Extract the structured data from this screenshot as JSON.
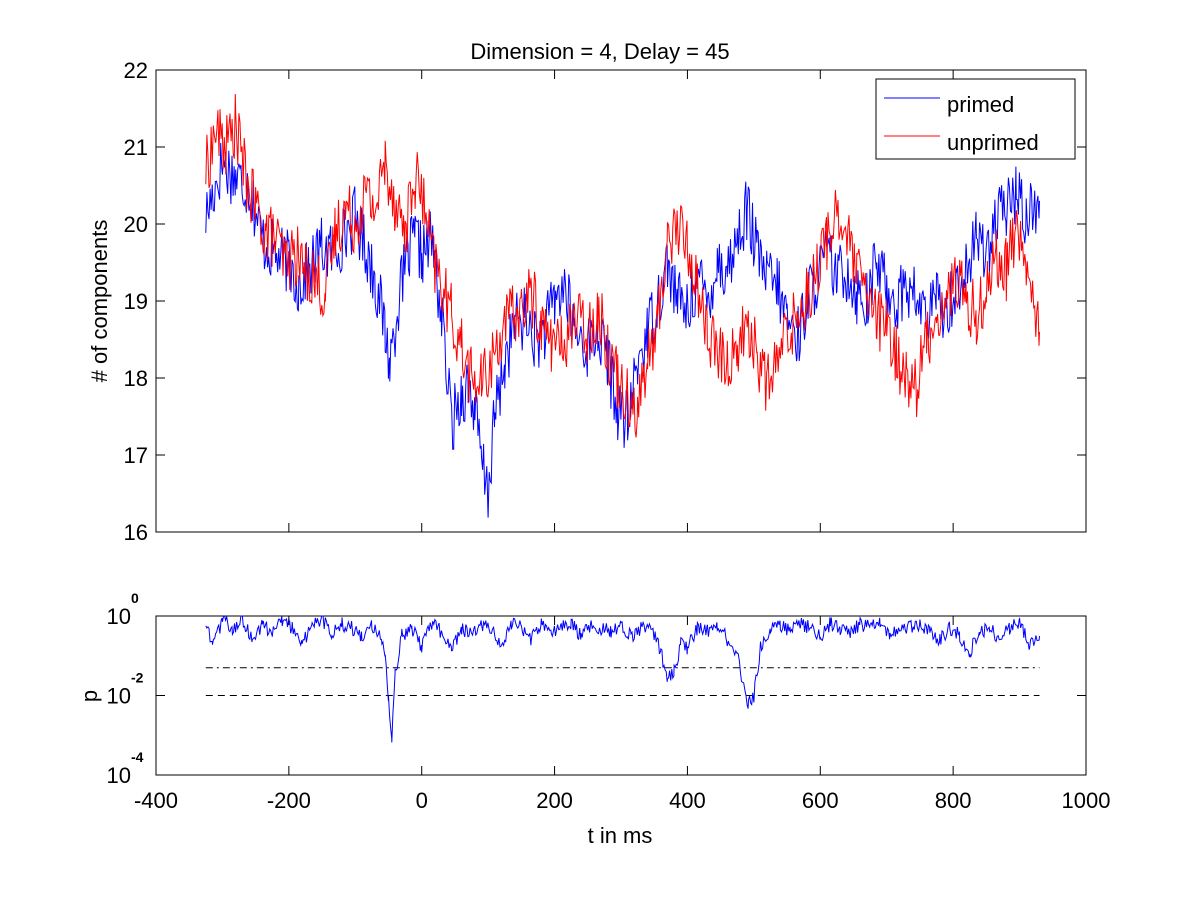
{
  "figure": {
    "title": "Dimension  = 4, Delay = 45",
    "xlabel": "t in ms"
  },
  "chart_data": [
    {
      "type": "line",
      "title": "Dimension  = 4, Delay = 45",
      "xlabel": "",
      "ylabel": "# of components",
      "xlim": [
        -400,
        1000
      ],
      "ylim": [
        16,
        22
      ],
      "x_ticks": [
        -400,
        -200,
        0,
        200,
        400,
        600,
        800,
        1000
      ],
      "y_ticks": [
        16,
        17,
        18,
        19,
        20,
        21,
        22
      ],
      "x_tick_labels_visible": false,
      "legend": {
        "placement": "top-right",
        "entries": [
          "primed",
          "unprimed"
        ]
      },
      "grid": false,
      "x_range_data": [
        -325,
        930
      ],
      "series": [
        {
          "name": "primed",
          "color": "#0000ff",
          "x": [
            -325,
            -300,
            -280,
            -260,
            -240,
            -220,
            -200,
            -185,
            -170,
            -150,
            -135,
            -120,
            -100,
            -85,
            -70,
            -55,
            -48,
            -35,
            -20,
            -10,
            0,
            15,
            30,
            45,
            60,
            70,
            80,
            90,
            100,
            110,
            125,
            140,
            155,
            170,
            185,
            200,
            215,
            230,
            250,
            265,
            280,
            295,
            310,
            325,
            340,
            355,
            370,
            385,
            400,
            415,
            430,
            445,
            460,
            475,
            490,
            505,
            520,
            535,
            550,
            565,
            580,
            595,
            610,
            625,
            640,
            655,
            670,
            685,
            700,
            715,
            730,
            745,
            760,
            775,
            790,
            805,
            820,
            835,
            850,
            865,
            880,
            895,
            910,
            930
          ],
          "values": [
            20.1,
            20.8,
            20.6,
            20.5,
            19.8,
            19.6,
            19.5,
            19.2,
            19.4,
            19.7,
            19.6,
            19.8,
            20.1,
            19.7,
            19.3,
            18.6,
            18.2,
            19.0,
            19.6,
            19.8,
            19.6,
            19.8,
            18.8,
            17.4,
            17.8,
            17.9,
            17.6,
            16.9,
            16.5,
            17.5,
            18.2,
            18.7,
            18.8,
            18.5,
            18.6,
            19.0,
            19.2,
            18.6,
            18.4,
            18.6,
            18.2,
            17.6,
            17.4,
            18.2,
            18.6,
            19.0,
            19.5,
            19.0,
            18.9,
            19.3,
            19.0,
            19.5,
            19.4,
            19.8,
            20.2,
            19.6,
            19.3,
            19.2,
            18.8,
            18.5,
            19.0,
            19.3,
            19.6,
            19.3,
            19.4,
            19.1,
            19.0,
            19.5,
            19.2,
            19.0,
            19.2,
            19.0,
            18.8,
            19.0,
            18.9,
            19.2,
            19.4,
            19.8,
            19.7,
            20.0,
            20.2,
            20.4,
            20.1,
            20.3
          ]
        },
        {
          "name": "unprimed",
          "color": "#ff0000",
          "x": [
            -325,
            -310,
            -295,
            -280,
            -265,
            -250,
            -235,
            -220,
            -205,
            -190,
            -175,
            -160,
            -145,
            -130,
            -115,
            -100,
            -85,
            -70,
            -55,
            -40,
            -25,
            -10,
            0,
            15,
            30,
            45,
            60,
            75,
            90,
            105,
            120,
            135,
            150,
            165,
            180,
            195,
            210,
            230,
            250,
            265,
            280,
            295,
            310,
            325,
            340,
            355,
            370,
            385,
            400,
            415,
            430,
            445,
            460,
            475,
            490,
            505,
            520,
            535,
            550,
            565,
            580,
            595,
            610,
            625,
            640,
            655,
            670,
            685,
            700,
            715,
            730,
            745,
            760,
            775,
            790,
            805,
            820,
            835,
            850,
            865,
            880,
            895,
            910,
            930
          ],
          "values": [
            20.7,
            21.2,
            21.0,
            21.3,
            20.6,
            20.2,
            19.9,
            19.8,
            19.5,
            19.6,
            19.4,
            19.3,
            19.1,
            19.9,
            20.2,
            20.0,
            20.4,
            20.2,
            20.8,
            20.3,
            19.9,
            20.6,
            20.4,
            19.6,
            19.2,
            18.8,
            18.4,
            18.0,
            17.9,
            18.2,
            18.6,
            18.8,
            18.9,
            19.1,
            18.7,
            18.5,
            18.4,
            18.8,
            18.6,
            18.9,
            18.4,
            18.0,
            17.8,
            17.6,
            18.2,
            18.7,
            19.8,
            20.0,
            19.7,
            19.2,
            18.6,
            18.3,
            18.2,
            18.4,
            18.7,
            18.3,
            17.9,
            18.2,
            18.6,
            18.8,
            19.1,
            19.4,
            19.8,
            20.2,
            19.8,
            19.4,
            19.0,
            18.8,
            18.6,
            18.3,
            18.0,
            17.9,
            18.5,
            18.8,
            19.0,
            19.3,
            19.0,
            18.8,
            19.2,
            19.6,
            19.4,
            20.0,
            19.4,
            18.6
          ]
        }
      ]
    },
    {
      "type": "line",
      "title": "",
      "xlabel": "t in ms",
      "ylabel": "p",
      "xlim": [
        -400,
        1000
      ],
      "ylim_log10": [
        -4,
        0
      ],
      "y_scale": "log",
      "x_ticks": [
        -400,
        -200,
        0,
        200,
        400,
        600,
        800,
        1000
      ],
      "x_tick_labels": [
        "-400",
        "-200",
        "0",
        "200",
        "400",
        "600",
        "800",
        "1000"
      ],
      "y_ticks": [
        {
          "base": "10",
          "exp": "0",
          "value": 1
        },
        {
          "base": "10",
          "exp": "-2",
          "value": 0.01
        },
        {
          "base": "10",
          "exp": "-4",
          "value": 0.0001
        }
      ],
      "grid": false,
      "reference_lines": [
        {
          "style": "dash-dot",
          "value": 0.05,
          "x_range": [
            -325,
            930
          ]
        },
        {
          "style": "dashed",
          "value": 0.01,
          "x_range": [
            -325,
            930
          ]
        }
      ],
      "series": [
        {
          "color": "#0000ff",
          "x": [
            -325,
            -315,
            -300,
            -285,
            -270,
            -255,
            -240,
            -225,
            -210,
            -195,
            -180,
            -165,
            -150,
            -135,
            -120,
            -105,
            -90,
            -75,
            -60,
            -55,
            -50,
            -45,
            -40,
            -30,
            -15,
            0,
            15,
            30,
            45,
            60,
            75,
            90,
            105,
            120,
            135,
            150,
            165,
            180,
            195,
            210,
            225,
            240,
            255,
            270,
            285,
            300,
            315,
            330,
            345,
            360,
            370,
            380,
            390,
            400,
            415,
            430,
            445,
            460,
            475,
            485,
            492,
            500,
            510,
            525,
            540,
            555,
            570,
            585,
            600,
            615,
            630,
            645,
            660,
            675,
            690,
            705,
            720,
            735,
            750,
            765,
            780,
            795,
            810,
            825,
            840,
            855,
            870,
            885,
            900,
            915,
            930
          ],
          "p_log10": [
            -0.2,
            -0.8,
            -0.1,
            -0.3,
            -0.1,
            -0.6,
            -0.2,
            -0.4,
            -0.1,
            -0.3,
            -0.7,
            -0.2,
            -0.1,
            -0.4,
            -0.2,
            -0.3,
            -0.5,
            -0.2,
            -0.6,
            -1.0,
            -2.1,
            -3.1,
            -1.5,
            -0.5,
            -0.3,
            -0.8,
            -0.2,
            -0.4,
            -0.9,
            -0.3,
            -0.5,
            -0.2,
            -0.4,
            -0.7,
            -0.2,
            -0.3,
            -0.6,
            -0.2,
            -0.4,
            -0.3,
            -0.2,
            -0.5,
            -0.2,
            -0.3,
            -0.4,
            -0.2,
            -0.5,
            -0.3,
            -0.2,
            -0.9,
            -1.6,
            -1.4,
            -0.7,
            -0.8,
            -0.3,
            -0.4,
            -0.2,
            -0.6,
            -0.9,
            -1.8,
            -2.2,
            -2.0,
            -0.8,
            -0.3,
            -0.2,
            -0.4,
            -0.2,
            -0.3,
            -0.5,
            -0.2,
            -0.3,
            -0.4,
            -0.2,
            -0.3,
            -0.2,
            -0.5,
            -0.2,
            -0.3,
            -0.2,
            -0.4,
            -0.6,
            -0.3,
            -0.5,
            -0.9,
            -0.4,
            -0.3,
            -0.6,
            -0.3,
            -0.2,
            -0.7,
            -0.5
          ]
        }
      ]
    }
  ]
}
